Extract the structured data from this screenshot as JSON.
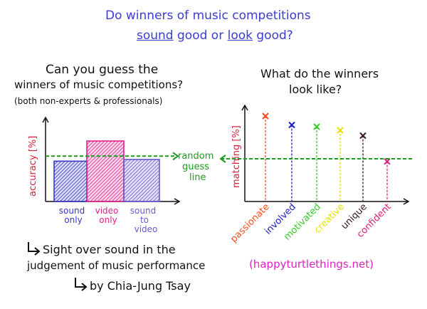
{
  "title": {
    "line1": "Do winners of music competitions",
    "sound": "sound",
    "good_or": "good or",
    "look": "look",
    "good_q": "good?"
  },
  "left": {
    "question": [
      "Can you guess the",
      "winners of music competitions?",
      "(both non-experts & professionals)"
    ],
    "ylabel": "accuracy [%]"
  },
  "right": {
    "question": [
      "What do the winners",
      "look like?"
    ],
    "ylabel": "matching [%]"
  },
  "random_line_label": [
    "random",
    "guess",
    "line"
  ],
  "conclusion": {
    "line1": "Sight over sound in the",
    "line2": "judgement of music performance",
    "credit": "by Chia-Jung Tsay"
  },
  "website": "(happyturtlethings.net)",
  "colors": {
    "sound": "#3838c8",
    "video": "#e0208a",
    "sound_to_video": "#6a5acd",
    "green": "#1f9a1f",
    "passionate": "#ff4a1a",
    "involved": "#1c1ccc",
    "motivated": "#33cc22",
    "creative": "#e8e000",
    "unique": "#3a1a1a",
    "confident": "#e0207a"
  },
  "chart_data": [
    {
      "type": "bar",
      "categories": [
        "sound only",
        "video only",
        "sound to video"
      ],
      "values": [
        48,
        72,
        50
      ],
      "random_guess": 54,
      "ylabel": "accuracy [%]"
    },
    {
      "type": "bar",
      "categories": [
        "passionate",
        "involved",
        "motivated",
        "creative",
        "unique",
        "confident"
      ],
      "values": [
        96,
        86,
        84,
        80,
        74,
        45
      ],
      "random_guess": 48,
      "ylabel": "matching [%]"
    }
  ]
}
